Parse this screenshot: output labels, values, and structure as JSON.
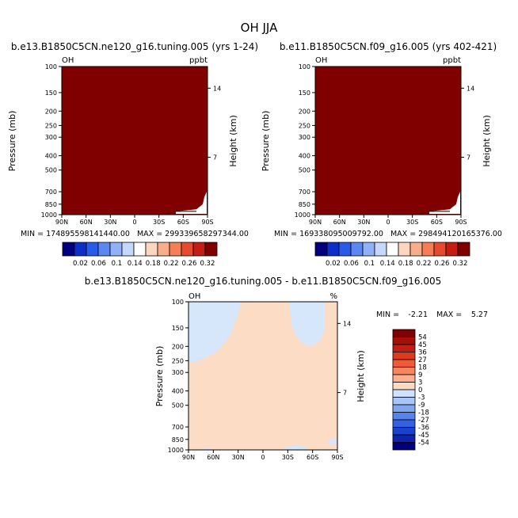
{
  "figure_title": "OH JJA",
  "chart_data": [
    {
      "type": "heatmap",
      "title": "b.e13.B1850C5CN.ne120_g16.tuning.005 (yrs 1-24)",
      "var_label": "OH",
      "units": "ppbt",
      "xlabel": "",
      "ylabel": "Pressure (mb)",
      "y2label": "Height (km)",
      "xticks": [
        "90N",
        "60N",
        "30N",
        "0",
        "30S",
        "60S",
        "90S"
      ],
      "yticks": [
        "100",
        "150",
        "200",
        "250",
        "300",
        "400",
        "500",
        "700",
        "850",
        "1000"
      ],
      "y2ticks": [
        "14",
        "7"
      ],
      "ylim": [
        1000,
        100
      ],
      "stats": "MIN = 174895598141440.00   MAX = 299339658297344.00",
      "fill_color": "#800000",
      "colorbar_levels": [
        "0.02",
        "0.06",
        "0.1",
        "0.14",
        "0.18",
        "0.22",
        "0.26",
        "0.32"
      ]
    },
    {
      "type": "heatmap",
      "title": "b.e11.B1850C5CN.f09_g16.005 (yrs 402-421)",
      "var_label": "OH",
      "units": "ppbt",
      "xlabel": "",
      "ylabel": "Pressure (mb)",
      "y2label": "Height (km)",
      "xticks": [
        "90N",
        "60N",
        "30N",
        "0",
        "30S",
        "60S",
        "90S"
      ],
      "yticks": [
        "100",
        "150",
        "200",
        "250",
        "300",
        "400",
        "500",
        "700",
        "850",
        "1000"
      ],
      "y2ticks": [
        "14",
        "7"
      ],
      "ylim": [
        1000,
        100
      ],
      "stats": "MIN = 169338095009792.00   MAX = 298494120165376.00",
      "fill_color": "#800000",
      "colorbar_levels": [
        "0.02",
        "0.06",
        "0.1",
        "0.14",
        "0.18",
        "0.22",
        "0.26",
        "0.32"
      ]
    },
    {
      "type": "heatmap",
      "title": "b.e13.B1850C5CN.ne120_g16.tuning.005 - b.e11.B1850C5CN.f09_g16.005",
      "var_label": "OH",
      "units": "%",
      "ylabel": "Pressure (mb)",
      "y2label": "Height (km)",
      "xticks": [
        "90N",
        "60N",
        "30N",
        "0",
        "30S",
        "60S",
        "90S"
      ],
      "yticks": [
        "100",
        "150",
        "200",
        "250",
        "300",
        "400",
        "500",
        "700",
        "850",
        "1000"
      ],
      "y2ticks": [
        "14",
        "7"
      ],
      "ylim": [
        1000,
        100
      ],
      "stats": {
        "min_label": "MIN =",
        "min": "-2.21",
        "max_label": "MAX =",
        "max": "5.27"
      },
      "colorbar_levels": [
        "54",
        "45",
        "36",
        "27",
        "18",
        "9",
        "3",
        "0",
        "-3",
        "-9",
        "-18",
        "-27",
        "-36",
        "-45",
        "-54"
      ]
    }
  ],
  "colors": {
    "cbar1": [
      "#00007f",
      "#0d2fc9",
      "#2a5ae8",
      "#5b87f0",
      "#8fb1f5",
      "#c5d8fb",
      "#ffffff",
      "#fcd6bf",
      "#f9ae8b",
      "#f47f56",
      "#e74b2e",
      "#c41e14",
      "#800000"
    ],
    "cbar2": [
      "#800000",
      "#a50f08",
      "#c41e14",
      "#e03a1e",
      "#f05b35",
      "#f7855d",
      "#fcb08f",
      "#fcd9c2",
      "#cfe2fb",
      "#a8c6f6",
      "#7fa6f1",
      "#5684ec",
      "#3262e3",
      "#1842cf",
      "#0d23ad",
      "#00007f"
    ],
    "pos_fill": "#fcdcc4",
    "neg_fill": "#d6e6fb"
  }
}
